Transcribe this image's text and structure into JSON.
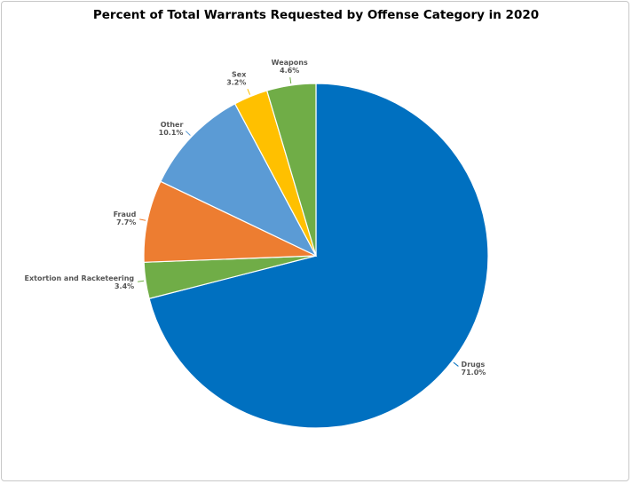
{
  "chart_data": {
    "type": "pie",
    "title": "Percent of Total Warrants Requested by Offense Category in 2020",
    "start_angle": "12 o'clock",
    "direction": "clockwise",
    "slices": [
      {
        "label": "Drugs",
        "value": 71.0,
        "value_label": "71.0%",
        "color": "#0070c0"
      },
      {
        "label": "Extortion and Racketeering",
        "value": 3.4,
        "value_label": "3.4%",
        "color": "#70ad47"
      },
      {
        "label": "Fraud",
        "value": 7.7,
        "value_label": "7.7%",
        "color": "#ed7d31"
      },
      {
        "label": "Other",
        "value": 10.1,
        "value_label": "10.1%",
        "color": "#5b9bd5"
      },
      {
        "label": "Sex",
        "value": 3.2,
        "value_label": "3.2%",
        "color": "#ffc000"
      },
      {
        "label": "Weapons",
        "value": 4.6,
        "value_label": "4.6%",
        "color": "#70ad47"
      }
    ]
  }
}
